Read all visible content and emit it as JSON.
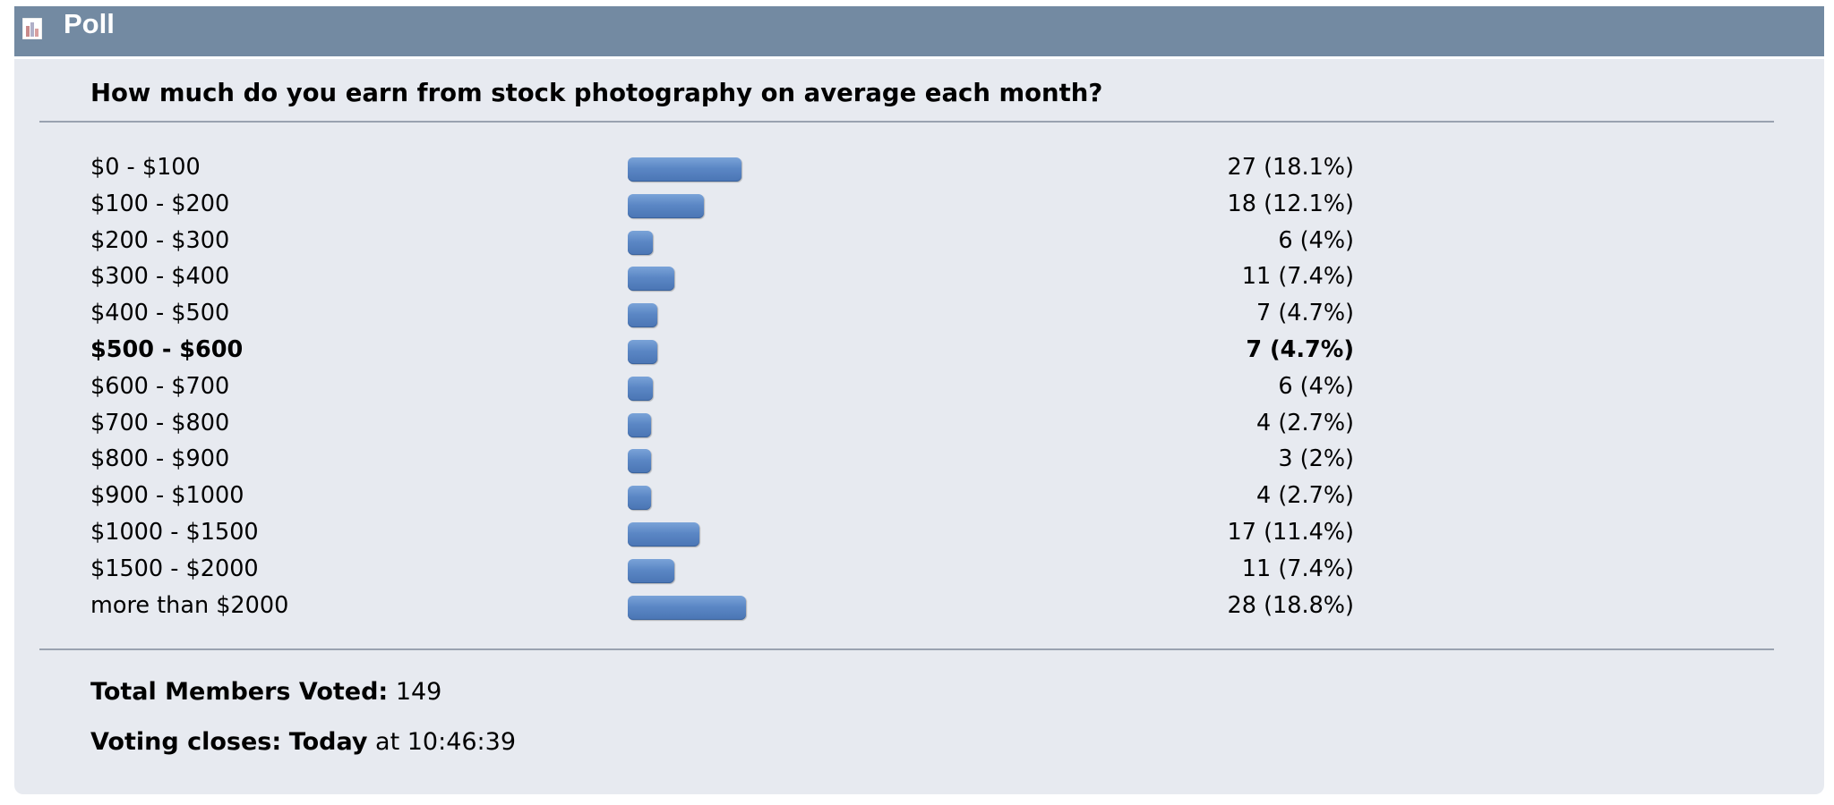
{
  "header": {
    "title": "Poll",
    "icon": "poll-chart-icon"
  },
  "poll": {
    "question": "How much do you earn from stock photography on average each month?",
    "options": [
      {
        "label": "$0 - $100",
        "votes": "27 (18.1%)",
        "count": 27,
        "percent": 18.1,
        "highlighted": false
      },
      {
        "label": "$100 - $200",
        "votes": "18 (12.1%)",
        "count": 18,
        "percent": 12.1,
        "highlighted": false
      },
      {
        "label": "$200 - $300",
        "votes": "6 (4%)",
        "count": 6,
        "percent": 4,
        "highlighted": false
      },
      {
        "label": "$300 - $400",
        "votes": "11 (7.4%)",
        "count": 11,
        "percent": 7.4,
        "highlighted": false
      },
      {
        "label": "$400 - $500",
        "votes": "7 (4.7%)",
        "count": 7,
        "percent": 4.7,
        "highlighted": false
      },
      {
        "label": "$500 - $600",
        "votes": "7 (4.7%)",
        "count": 7,
        "percent": 4.7,
        "highlighted": true
      },
      {
        "label": "$600 - $700",
        "votes": "6 (4%)",
        "count": 6,
        "percent": 4,
        "highlighted": false
      },
      {
        "label": "$700 - $800",
        "votes": "4 (2.7%)",
        "count": 4,
        "percent": 2.7,
        "highlighted": false
      },
      {
        "label": "$800 - $900",
        "votes": "3 (2%)",
        "count": 3,
        "percent": 2,
        "highlighted": false
      },
      {
        "label": "$900 - $1000",
        "votes": "4 (2.7%)",
        "count": 4,
        "percent": 2.7,
        "highlighted": false
      },
      {
        "label": "$1000 - $1500",
        "votes": "17 (11.4%)",
        "count": 17,
        "percent": 11.4,
        "highlighted": false
      },
      {
        "label": "$1500 - $2000",
        "votes": "11 (7.4%)",
        "count": 11,
        "percent": 7.4,
        "highlighted": false
      },
      {
        "label": "more than $2000",
        "votes": "28 (18.8%)",
        "count": 28,
        "percent": 18.8,
        "highlighted": false
      }
    ],
    "total_label": "Total Members Voted:",
    "total_value": "149",
    "closes_label": "Voting closes:",
    "closes_day": "Today",
    "closes_at": "at 10:46:39"
  },
  "colors": {
    "header_bg": "#738aa2",
    "body_bg": "#e7eaf0",
    "bar": "#5b87c5"
  }
}
